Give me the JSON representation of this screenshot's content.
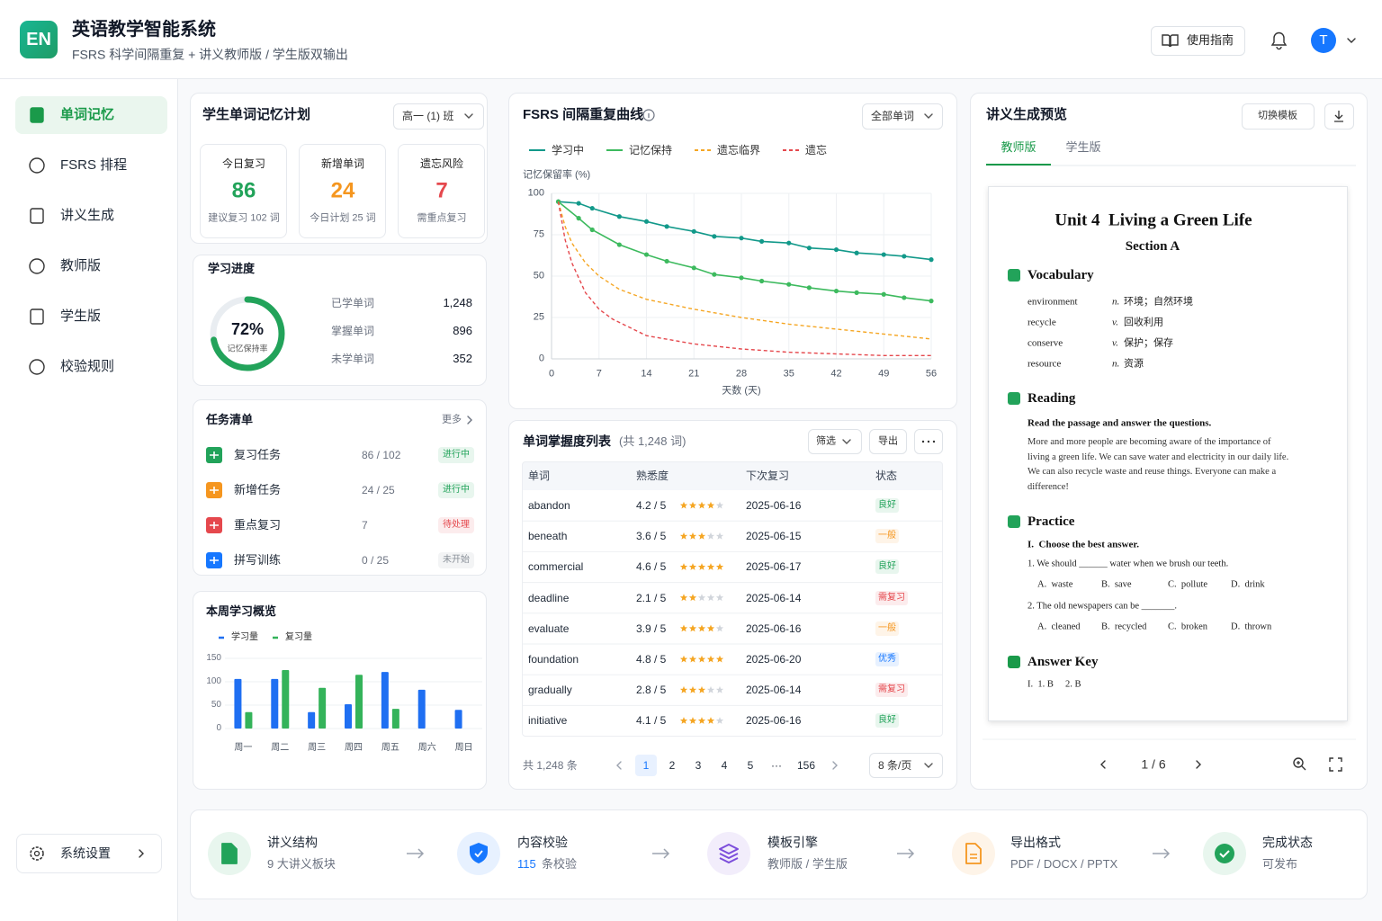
{
  "header": {
    "logo": "EN",
    "title": "英语教学智能系统",
    "subtitle": "FSRS 科学间隔重复 + 讲义教师版 / 学生版双输出",
    "guide": "使用指南",
    "avatar": "T"
  },
  "sidebar": {
    "items": [
      "单词记忆",
      "FSRS 排程",
      "讲义生成",
      "教师版",
      "学生版",
      "校验规则"
    ],
    "active": 0,
    "settings": "系统设置"
  },
  "plan": {
    "title": "学生单词记忆计划",
    "class": "高一 (1) 班",
    "stats": [
      {
        "label": "今日复习",
        "value": 86,
        "note": "建议复习 102 词",
        "color": "#22a35a"
      },
      {
        "label": "新增单词",
        "value": 24,
        "note": "今日计划 25 词",
        "color": "#f5961f"
      },
      {
        "label": "遗忘风险",
        "value": 7,
        "note": "需重点复习",
        "color": "#e5484d"
      }
    ]
  },
  "progress": {
    "title": "学习进度",
    "percent": {
      "value": 72,
      "label": "72%"
    },
    "caption": "记忆保持率",
    "color": "#22a35a",
    "rows": [
      {
        "label": "已学单词",
        "value": "1,248"
      },
      {
        "label": "掌握单词",
        "value": 896
      },
      {
        "label": "未学单词",
        "value": 352
      }
    ]
  },
  "tasks": {
    "title": "任务清单",
    "more": "更多",
    "items": [
      {
        "name": "复习任务",
        "progress": "86 / 102",
        "status": "进行中",
        "color": "#22a35a",
        "status_color": "#22a35a"
      },
      {
        "name": "新增任务",
        "progress": "24 / 25",
        "status": "进行中",
        "color": "#f5961f",
        "status_color": "#22a35a"
      },
      {
        "name": "重点复习",
        "progress": 7,
        "status": "待处理",
        "color": "#e5484d",
        "status_color": "#e5484d"
      },
      {
        "name": "拼写训练",
        "progress": "0 / 25",
        "status": "未开始",
        "color": "#1677ff",
        "status_color": "#8a9099"
      }
    ]
  },
  "weekly_chart": {
    "type": "bar",
    "title": "本周学习概览",
    "categories": [
      "周一",
      "周二",
      "周三",
      "周四",
      "周五",
      "周六",
      "周日"
    ],
    "series": [
      {
        "name": "学习量",
        "color": "#1f6ff2",
        "values": [
          106,
          106,
          35,
          52,
          121,
          83,
          40
        ]
      },
      {
        "name": "复习量",
        "color": "#34b35a",
        "values": [
          35,
          125,
          87,
          115,
          42,
          null,
          null
        ]
      }
    ],
    "ylim": [
      0,
      150
    ],
    "yticks": [
      0,
      50,
      100,
      150
    ]
  },
  "fsrs_chart": {
    "type": "line",
    "title": "FSRS 间隔重复曲线",
    "filter": "全部单词",
    "y_label": "记忆保留率 (%)",
    "x_label": "天数 (天)",
    "series": [
      {
        "name": "学习中",
        "color": "#12998a",
        "dash": false,
        "markers": true,
        "x": [
          1,
          4,
          6,
          10,
          14,
          17,
          21,
          24,
          28,
          31,
          35,
          38,
          42,
          45,
          49,
          52,
          56
        ],
        "values": [
          95,
          94,
          91,
          86,
          83,
          80,
          77,
          74,
          73,
          71,
          70,
          67,
          66,
          64,
          63,
          62,
          60
        ]
      },
      {
        "name": "记忆保持",
        "color": "#3dba5e",
        "dash": false,
        "markers": true,
        "x": [
          1,
          4,
          6,
          10,
          14,
          17,
          21,
          24,
          28,
          31,
          35,
          38,
          42,
          45,
          49,
          52,
          56
        ],
        "values": [
          95,
          85,
          78,
          69,
          63,
          59,
          55,
          51,
          49,
          47,
          45,
          43,
          41,
          40,
          39,
          37,
          35
        ]
      },
      {
        "name": "遗忘临界",
        "color": "#f5a623",
        "dash": true,
        "markers": false,
        "x": [
          1,
          2,
          3,
          5,
          7,
          10,
          14,
          21,
          28,
          35,
          42,
          49,
          56
        ],
        "values": [
          95,
          80,
          70,
          58,
          50,
          42,
          36,
          30,
          25,
          21,
          18,
          15,
          12
        ]
      },
      {
        "name": "遗忘",
        "color": "#e5484d",
        "dash": true,
        "markers": false,
        "x": [
          1,
          2,
          3,
          5,
          7,
          9,
          14,
          21,
          28,
          35,
          42,
          49,
          56
        ],
        "values": [
          95,
          72,
          58,
          40,
          30,
          24,
          14,
          9,
          6,
          4,
          3,
          2,
          2
        ]
      }
    ],
    "xlim": [
      0,
      56
    ],
    "xticks": [
      0,
      7,
      14,
      21,
      28,
      35,
      42,
      49,
      56
    ],
    "ylim": [
      0,
      100
    ],
    "yticks": [
      0,
      25,
      50,
      75,
      100
    ],
    "grid": true
  },
  "word_table": {
    "title": "单词掌握度列表",
    "count": "(共 1,248 词)",
    "filter": "筛选",
    "export": "导出",
    "columns": [
      "单词",
      "熟悉度",
      "下次复习",
      "状态"
    ],
    "rows": [
      {
        "word": "abandon",
        "score": "4.2 / 5",
        "stars": 4,
        "next": "2025-06-16",
        "status": "良好",
        "color": "#22a35a"
      },
      {
        "word": "beneath",
        "score": "3.6 / 5",
        "stars": 3,
        "next": "2025-06-15",
        "status": "一般",
        "color": "#f5961f"
      },
      {
        "word": "commercial",
        "score": "4.6 / 5",
        "stars": 5,
        "next": "2025-06-17",
        "status": "良好",
        "color": "#22a35a"
      },
      {
        "word": "deadline",
        "score": "2.1 / 5",
        "stars": 2,
        "next": "2025-06-14",
        "status": "需复习",
        "color": "#e5484d"
      },
      {
        "word": "evaluate",
        "score": "3.9 / 5",
        "stars": 4,
        "next": "2025-06-16",
        "status": "一般",
        "color": "#f5961f"
      },
      {
        "word": "foundation",
        "score": "4.8 / 5",
        "stars": 5,
        "next": "2025-06-20",
        "status": "优秀",
        "color": "#1677ff"
      },
      {
        "word": "gradually",
        "score": "2.8 / 5",
        "stars": 3,
        "next": "2025-06-14",
        "status": "需复习",
        "color": "#e5484d"
      },
      {
        "word": "initiative",
        "score": "4.1 / 5",
        "stars": 4,
        "next": "2025-06-16",
        "status": "良好",
        "color": "#22a35a"
      }
    ],
    "total": "共 1,248 条",
    "pages": [
      1,
      2,
      3,
      4,
      5,
      "···",
      156
    ],
    "current": 0,
    "page_size": "8 条/页"
  },
  "handout": {
    "title": "讲义生成预览",
    "switch": "切换模板",
    "tabs": [
      "教师版",
      "学生版"
    ],
    "active_tab": 0,
    "doc": {
      "unit": "Unit 4  Living a Green Life",
      "section": "Section A",
      "vocab_title": "Vocabulary",
      "vocab": [
        {
          "word": "environment",
          "pos": "n.",
          "meaning": "环境；自然环境"
        },
        {
          "word": "recycle",
          "pos": "v.",
          "meaning": "回收利用"
        },
        {
          "word": "conserve",
          "pos": "v.",
          "meaning": "保护；保存"
        },
        {
          "word": "resource",
          "pos": "n.",
          "meaning": "资源"
        }
      ],
      "reading_title": "Reading",
      "reading_instr": "Read the passage and answer the questions.",
      "passage": "More and more people are becoming aware of the importance of living a green life. We can save water and electricity in our daily life. We can also recycle waste and reuse things. Everyone can make a difference!",
      "practice_title": "Practice",
      "practice_instr": "I.  Choose the best answer.",
      "questions": [
        {
          "stem": "1. We should ______ water when we brush our teeth.",
          "options": [
            "A.  waste",
            "B.  save",
            "C.  pollute",
            "D.  drink"
          ]
        },
        {
          "stem": "2. The old newspapers can be _______.",
          "options": [
            "A.  cleaned",
            "B.  recycled",
            "C.  broken",
            "D.  thrown"
          ]
        }
      ],
      "answer_title": "Answer Key",
      "answers": "I.  1. B     2. B"
    },
    "page": "1 / 6"
  },
  "pipeline": {
    "steps": [
      {
        "title": "讲义结构",
        "detail": "9 大讲义板块",
        "color": "#22a35a"
      },
      {
        "title": "内容校验",
        "highlight": "115",
        "detail": "条校验",
        "color": "#1677ff"
      },
      {
        "title": "模板引擎",
        "detail": "教师版 / 学生版",
        "color": "#7c4ddb"
      },
      {
        "title": "导出格式",
        "detail": "PDF / DOCX / PPTX",
        "color": "#f5961f"
      },
      {
        "title": "完成状态",
        "detail": "可发布",
        "color": "#22a35a"
      }
    ]
  }
}
